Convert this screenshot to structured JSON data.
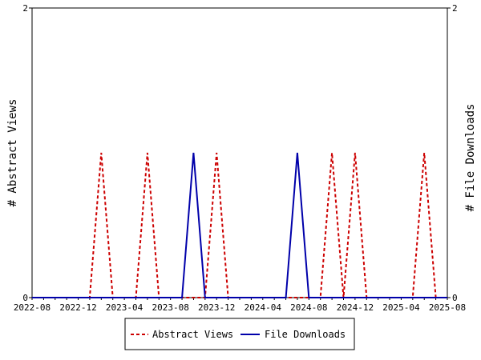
{
  "chart_data": {
    "type": "line",
    "ylabel_left": "# Abstract Views",
    "ylabel_right": "# File Downloads",
    "ylim": [
      0,
      2
    ],
    "y_ticks": [
      "0",
      "2"
    ],
    "x_ticks": [
      "2022-08",
      "2022-12",
      "2023-04",
      "2023-08",
      "2023-12",
      "2024-04",
      "2024-08",
      "2024-12",
      "2025-04",
      "2025-08"
    ],
    "x_months": [
      "2022-08",
      "2022-09",
      "2022-10",
      "2022-11",
      "2022-12",
      "2023-01",
      "2023-02",
      "2023-03",
      "2023-04",
      "2023-05",
      "2023-06",
      "2023-07",
      "2023-08",
      "2023-09",
      "2023-10",
      "2023-11",
      "2023-12",
      "2024-01",
      "2024-02",
      "2024-03",
      "2024-04",
      "2024-05",
      "2024-06",
      "2024-07",
      "2024-08",
      "2024-09",
      "2024-10",
      "2024-11",
      "2024-12",
      "2025-01",
      "2025-02",
      "2025-03",
      "2025-04",
      "2025-05",
      "2025-06",
      "2025-07",
      "2025-08"
    ],
    "grid": false,
    "legend_position": "bottom",
    "series": [
      {
        "name": "Abstract Views",
        "color": "#cc0000",
        "style": "dashed",
        "axis": "left",
        "values": [
          0,
          0,
          0,
          0,
          0,
          0,
          1,
          0,
          0,
          0,
          1,
          0,
          0,
          0,
          0,
          0,
          1,
          0,
          0,
          0,
          0,
          0,
          0,
          0,
          0,
          0,
          1,
          0,
          1,
          0,
          0,
          0,
          0,
          0,
          1,
          0,
          0
        ]
      },
      {
        "name": "File Downloads",
        "color": "#0000aa",
        "style": "solid",
        "axis": "right",
        "values": [
          0,
          0,
          0,
          0,
          0,
          0,
          0,
          0,
          0,
          0,
          0,
          0,
          0,
          0,
          1,
          0,
          0,
          0,
          0,
          0,
          0,
          0,
          0,
          1,
          0,
          0,
          0,
          0,
          0,
          0,
          0,
          0,
          0,
          0,
          0,
          0,
          0
        ]
      }
    ]
  }
}
